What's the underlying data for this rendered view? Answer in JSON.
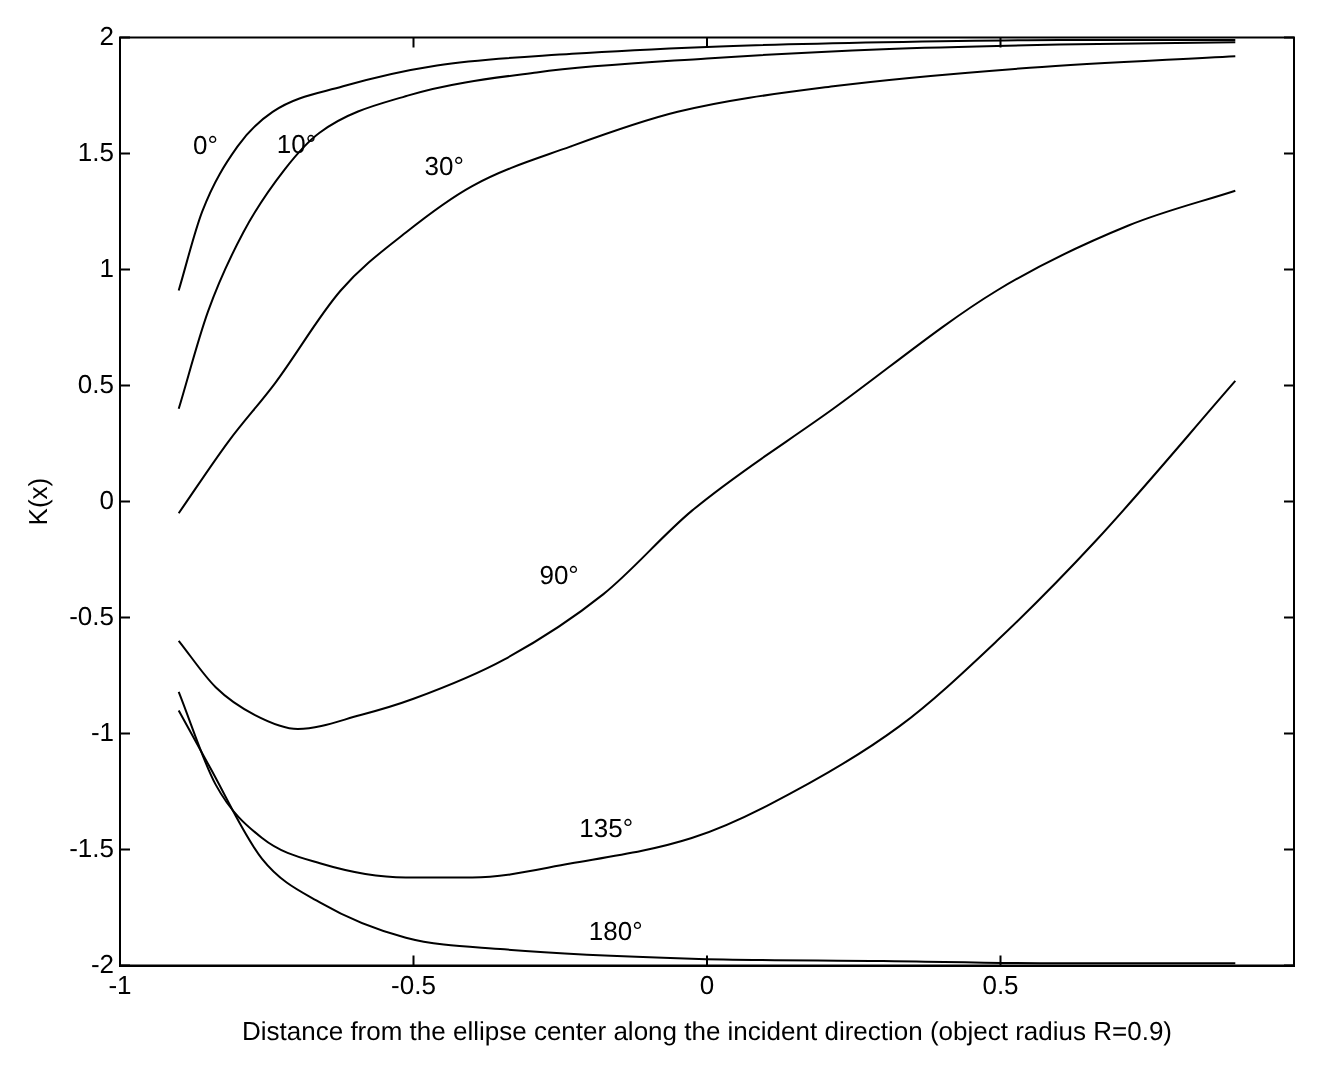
{
  "chart_data": {
    "type": "line",
    "xlabel": "Distance from the ellipse center along the incident direction (object radius R=0.9)",
    "ylabel": "K(x)",
    "xlim": [
      -1,
      1
    ],
    "ylim": [
      -2,
      2
    ],
    "xticks": [
      -1,
      -0.5,
      0,
      0.5
    ],
    "yticks": [
      -2,
      -1.5,
      -1,
      -0.5,
      0,
      0.5,
      1,
      1.5,
      2
    ],
    "grid": false,
    "legend": false,
    "marker": "none",
    "line_style": "solid",
    "series": [
      {
        "name": "0°",
        "color": "#000000",
        "x": [
          -0.9,
          -0.86,
          -0.8,
          -0.74,
          -0.62,
          -0.46,
          -0.23,
          0,
          0.3,
          0.6,
          0.9
        ],
        "values": [
          0.91,
          1.25,
          1.53,
          1.68,
          1.79,
          1.88,
          1.93,
          1.96,
          1.98,
          1.99,
          1.99
        ]
      },
      {
        "name": "10°",
        "color": "#000000",
        "x": [
          -0.9,
          -0.85,
          -0.79,
          -0.72,
          -0.66,
          -0.51,
          -0.29,
          0,
          0.3,
          0.6,
          0.9
        ],
        "values": [
          0.4,
          0.82,
          1.16,
          1.43,
          1.59,
          1.75,
          1.85,
          1.91,
          1.95,
          1.97,
          1.98
        ]
      },
      {
        "name": "30°",
        "color": "#000000",
        "x": [
          -0.9,
          -0.815,
          -0.736,
          -0.624,
          -0.513,
          -0.4,
          -0.233,
          -0.05,
          0.215,
          0.55,
          0.9
        ],
        "values": [
          -0.05,
          0.26,
          0.51,
          0.91,
          1.16,
          1.36,
          1.53,
          1.68,
          1.79,
          1.87,
          1.92
        ]
      },
      {
        "name": "90°",
        "color": "#000000",
        "x": [
          -0.9,
          -0.837,
          -0.77,
          -0.697,
          -0.59,
          -0.5,
          -0.345,
          -0.177,
          -0.026,
          0.215,
          0.494,
          0.718,
          0.9
        ],
        "values": [
          -0.6,
          -0.8,
          -0.92,
          -0.98,
          -0.92,
          -0.85,
          -0.68,
          -0.4,
          -0.04,
          0.4,
          0.91,
          1.19,
          1.34
        ]
      },
      {
        "name": "135°",
        "color": "#000000",
        "x": [
          -0.9,
          -0.837,
          -0.758,
          -0.658,
          -0.513,
          -0.4,
          -0.233,
          -0.026,
          0.103,
          0.327,
          0.494,
          0.662,
          0.9
        ],
        "values": [
          -0.82,
          -1.22,
          -1.45,
          -1.56,
          -1.62,
          -1.62,
          -1.56,
          -1.45,
          -1.31,
          -0.97,
          -0.6,
          -0.17,
          0.52
        ]
      },
      {
        "name": "180°",
        "color": "#000000",
        "x": [
          -0.9,
          -0.848,
          -0.758,
          -0.658,
          -0.513,
          -0.345,
          -0.026,
          0.3,
          0.6,
          0.9
        ],
        "values": [
          -0.9,
          -1.14,
          -1.54,
          -1.73,
          -1.88,
          -1.93,
          -1.97,
          -1.98,
          -1.99,
          -1.99
        ]
      }
    ]
  }
}
